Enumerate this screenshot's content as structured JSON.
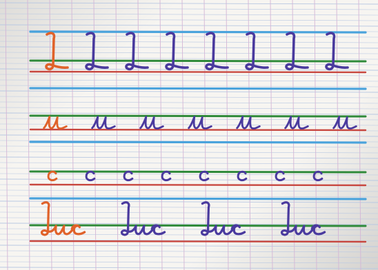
{
  "photo": {
    "subject": "handwriting-practice-sheet",
    "paper": "french-ruled-notebook"
  },
  "rows": [
    {
      "model": "L",
      "copies": [
        "L",
        "L",
        "L",
        "L",
        "L",
        "L",
        "L"
      ]
    },
    {
      "model": "u",
      "copies": [
        "u",
        "u",
        "u",
        "u",
        "u",
        "u"
      ]
    },
    {
      "model": "c",
      "copies": [
        "c",
        "c",
        "c",
        "c",
        "c",
        "c",
        "c"
      ]
    },
    {
      "model": "Luc",
      "copies": [
        "Luc",
        "Luc",
        "Luc"
      ]
    }
  ],
  "colors": {
    "teacher_model_ink": "#e0622a",
    "student_ink": "#4a3a9e",
    "guide_blue": "#4aa3dc",
    "guide_green": "#2f8a3a",
    "guide_red": "#c8473f",
    "grid_blue": "#b8c8e2",
    "grid_purple": "#d4b6d6",
    "paper": "#f7f5f1"
  }
}
